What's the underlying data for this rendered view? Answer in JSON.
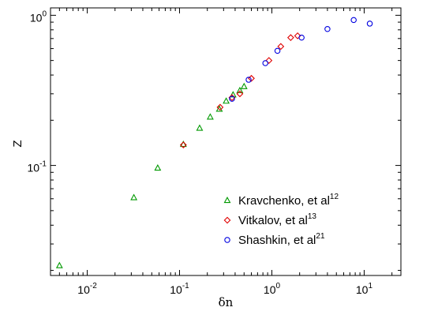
{
  "chart_data": {
    "type": "scatter",
    "title": "",
    "xlabel": "δn",
    "ylabel": "Z",
    "xscale": "log",
    "yscale": "log",
    "xlim": [
      0.004,
      25
    ],
    "ylim": [
      0.0185,
      1.12
    ],
    "grid": false,
    "legend_position": "lower-right",
    "x_ticks": [
      {
        "value": 0.01,
        "base": "10",
        "exp": "-2"
      },
      {
        "value": 0.1,
        "base": "10",
        "exp": "-1"
      },
      {
        "value": 1,
        "base": "10",
        "exp": "0"
      },
      {
        "value": 10,
        "base": "10",
        "exp": "1"
      }
    ],
    "y_ticks": [
      {
        "value": 0.1,
        "base": "10",
        "exp": "-1"
      },
      {
        "value": 1,
        "base": "10",
        "exp": "0"
      }
    ],
    "series": [
      {
        "name": "Kravchenko, et al",
        "superscript": "12",
        "marker": "triangle",
        "color": "#009900",
        "points": [
          {
            "x": 0.005,
            "y": 0.0215
          },
          {
            "x": 0.032,
            "y": 0.061
          },
          {
            "x": 0.058,
            "y": 0.096
          },
          {
            "x": 0.11,
            "y": 0.138
          },
          {
            "x": 0.165,
            "y": 0.177
          },
          {
            "x": 0.215,
            "y": 0.21
          },
          {
            "x": 0.27,
            "y": 0.237
          },
          {
            "x": 0.32,
            "y": 0.268
          },
          {
            "x": 0.38,
            "y": 0.295
          },
          {
            "x": 0.45,
            "y": 0.315
          },
          {
            "x": 0.5,
            "y": 0.335
          }
        ]
      },
      {
        "name": "Vitkalov, et al",
        "superscript": "13",
        "marker": "diamond",
        "color": "#e00000",
        "points": [
          {
            "x": 0.11,
            "y": 0.137
          },
          {
            "x": 0.275,
            "y": 0.244
          },
          {
            "x": 0.37,
            "y": 0.283
          },
          {
            "x": 0.45,
            "y": 0.3
          },
          {
            "x": 0.6,
            "y": 0.38
          },
          {
            "x": 0.93,
            "y": 0.5
          },
          {
            "x": 1.25,
            "y": 0.62
          },
          {
            "x": 1.6,
            "y": 0.71
          },
          {
            "x": 1.9,
            "y": 0.73
          }
        ]
      },
      {
        "name": "Shashkin, et al",
        "superscript": "21",
        "marker": "circle",
        "color": "#0000e0",
        "points": [
          {
            "x": 0.37,
            "y": 0.278
          },
          {
            "x": 0.56,
            "y": 0.372
          },
          {
            "x": 0.85,
            "y": 0.48
          },
          {
            "x": 1.15,
            "y": 0.58
          },
          {
            "x": 2.1,
            "y": 0.71
          },
          {
            "x": 4.0,
            "y": 0.81
          },
          {
            "x": 7.7,
            "y": 0.93
          },
          {
            "x": 11.5,
            "y": 0.88
          }
        ]
      }
    ]
  }
}
